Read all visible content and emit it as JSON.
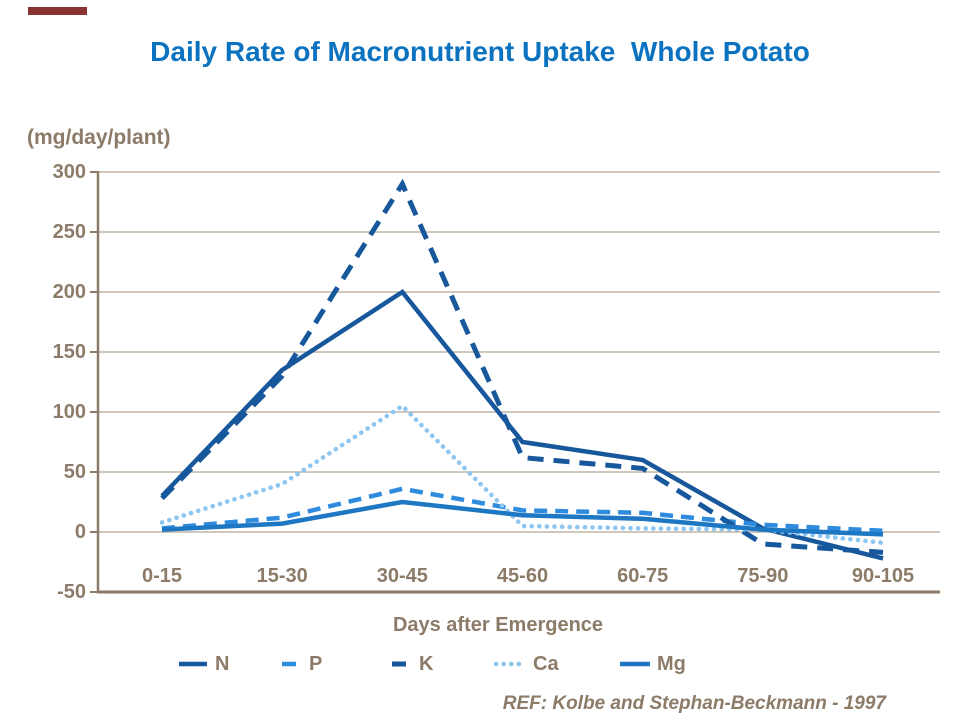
{
  "title": {
    "text": "Daily Rate of Macronutrient Uptake  Whole Potato",
    "color": "#0B72C0"
  },
  "accent_bar_color": "#8A3333",
  "ref_note": "REF: Kolbe and Stephan-Beckmann - 1997",
  "chart_data": {
    "type": "line",
    "title": "Daily Rate of Macronutrient Uptake  Whole Potato",
    "unit_label": "(mg/day/plant)",
    "xlabel": "Days after Emergence",
    "ylabel": "",
    "categories": [
      "0-15",
      "15-30",
      "30-45",
      "45-60",
      "60-75",
      "75-90",
      "90-105"
    ],
    "y_ticks": [
      300,
      250,
      200,
      150,
      100,
      50,
      0,
      -50
    ],
    "ylim": [
      -50,
      300
    ],
    "grid": true,
    "legend_position": "bottom",
    "axis_color": "#8C7B68",
    "grid_color": "#B3A695",
    "text_color": "#8C7B68",
    "series": [
      {
        "name": "N",
        "style": "solid",
        "color": "#17579B",
        "values": [
          30,
          135,
          200,
          75,
          60,
          3,
          -22
        ]
      },
      {
        "name": "P",
        "style": "dashed",
        "color": "#2F8BDD",
        "values": [
          3,
          12,
          36,
          18,
          16,
          6,
          1
        ]
      },
      {
        "name": "K",
        "style": "dashed",
        "color": "#17579B",
        "values": [
          28,
          130,
          290,
          62,
          53,
          -10,
          -17
        ]
      },
      {
        "name": "Ca",
        "style": "dotted",
        "color": "#8CC6F2",
        "values": [
          8,
          40,
          105,
          5,
          3,
          2,
          -9
        ]
      },
      {
        "name": "Mg",
        "style": "solid",
        "color": "#1D77C2",
        "values": [
          2,
          7,
          25,
          14,
          11,
          2,
          -2
        ]
      }
    ]
  }
}
